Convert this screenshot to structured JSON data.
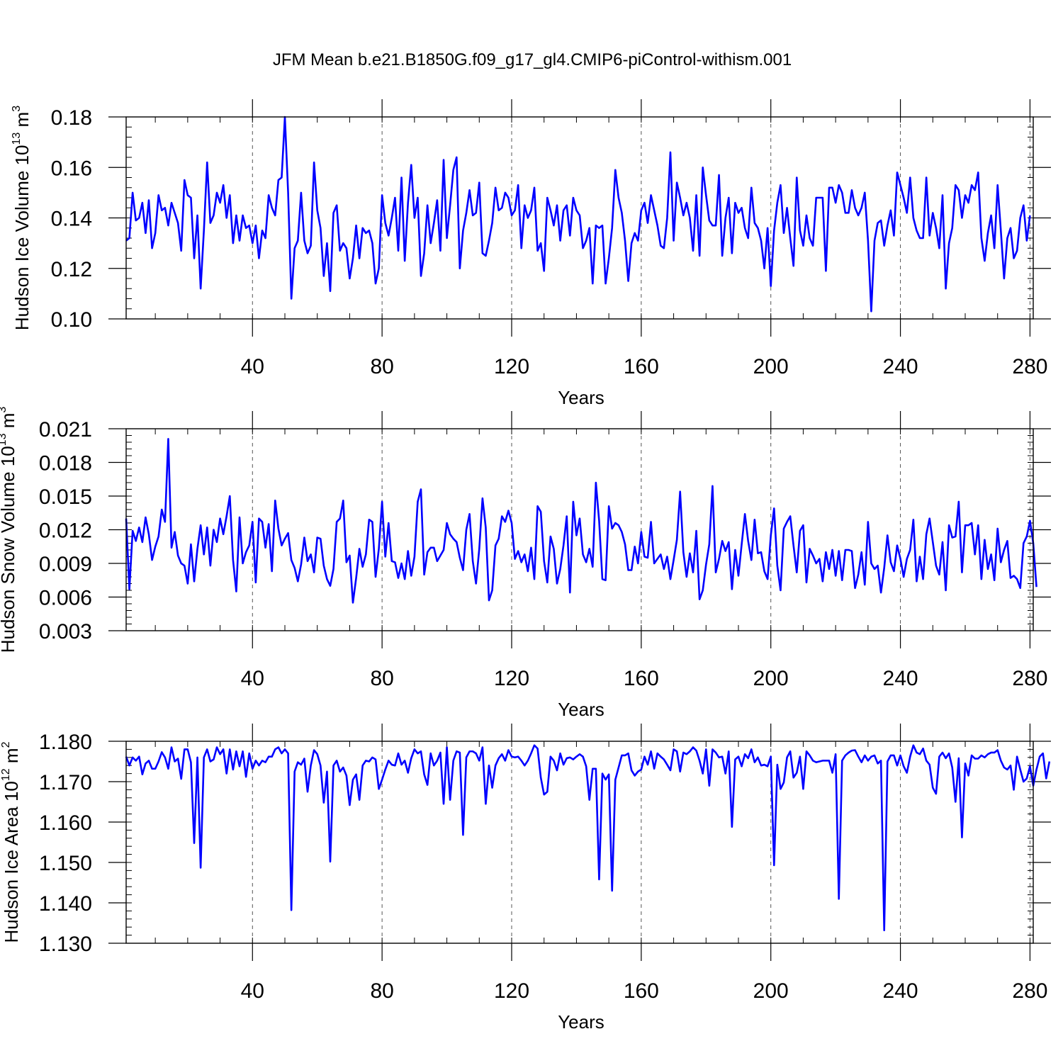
{
  "title": "JFM Mean b.e21.B1850G.f09_g17_gl4.CMIP6-piControl-withism.001",
  "colors": {
    "series": "#0000ff",
    "axis": "#000000",
    "grid": "#555555"
  },
  "chart_data": [
    {
      "type": "line",
      "ylabel": {
        "main": "Hudson Ice Volume 10",
        "exp": "13",
        "unit": " m",
        "unit_exp": "3"
      },
      "xlabel": "Years",
      "xlim": [
        1,
        281
      ],
      "ylim": [
        0.1,
        0.18
      ],
      "xticks": [
        40,
        80,
        120,
        160,
        200,
        240,
        280
      ],
      "xtick_labels": [
        "40",
        "80",
        "120",
        "160",
        "200",
        "240",
        "280"
      ],
      "yticks": [
        0.1,
        0.12,
        0.14,
        0.16,
        0.18
      ],
      "ytick_labels": [
        "0.10",
        "0.12",
        "0.14",
        "0.16",
        "0.18"
      ],
      "yminor_step": 0.004,
      "xminor_step": 10,
      "series": [
        {
          "name": "Hudson Ice Volume",
          "values": [
            0.131,
            0.132,
            0.15,
            0.139,
            0.14,
            0.146,
            0.134,
            0.147,
            0.128,
            0.134,
            0.149,
            0.143,
            0.144,
            0.137,
            0.146,
            0.142,
            0.138,
            0.127,
            0.155,
            0.149,
            0.148,
            0.124,
            0.141,
            0.112,
            0.135,
            0.162,
            0.138,
            0.141,
            0.15,
            0.146,
            0.153,
            0.14,
            0.149,
            0.13,
            0.141,
            0.131,
            0.141,
            0.136,
            0.137,
            0.13,
            0.137,
            0.124,
            0.135,
            0.132,
            0.149,
            0.144,
            0.141,
            0.155,
            0.156,
            0.18,
            0.15,
            0.108,
            0.128,
            0.131,
            0.15,
            0.131,
            0.126,
            0.129,
            0.162,
            0.143,
            0.136,
            0.117,
            0.13,
            0.111,
            0.142,
            0.145,
            0.127,
            0.13,
            0.128,
            0.116,
            0.124,
            0.137,
            0.124,
            0.136,
            0.134,
            0.135,
            0.13,
            0.114,
            0.12,
            0.149,
            0.138,
            0.133,
            0.14,
            0.148,
            0.127,
            0.156,
            0.123,
            0.146,
            0.161,
            0.14,
            0.148,
            0.117,
            0.126,
            0.145,
            0.13,
            0.138,
            0.147,
            0.127,
            0.163,
            0.132,
            0.145,
            0.159,
            0.164,
            0.12,
            0.135,
            0.142,
            0.151,
            0.141,
            0.142,
            0.154,
            0.126,
            0.125,
            0.131,
            0.138,
            0.152,
            0.143,
            0.144,
            0.15,
            0.148,
            0.141,
            0.143,
            0.153,
            0.128,
            0.145,
            0.14,
            0.143,
            0.152,
            0.127,
            0.13,
            0.119,
            0.148,
            0.143,
            0.137,
            0.145,
            0.131,
            0.143,
            0.145,
            0.133,
            0.148,
            0.143,
            0.141,
            0.128,
            0.131,
            0.136,
            0.114,
            0.137,
            0.136,
            0.137,
            0.114,
            0.124,
            0.136,
            0.159,
            0.148,
            0.142,
            0.131,
            0.115,
            0.13,
            0.134,
            0.131,
            0.143,
            0.146,
            0.138,
            0.149,
            0.143,
            0.137,
            0.129,
            0.128,
            0.14,
            0.166,
            0.131,
            0.154,
            0.148,
            0.141,
            0.146,
            0.14,
            0.127,
            0.149,
            0.125,
            0.16,
            0.149,
            0.139,
            0.137,
            0.137,
            0.157,
            0.125,
            0.14,
            0.148,
            0.126,
            0.146,
            0.142,
            0.144,
            0.136,
            0.132,
            0.152,
            0.138,
            0.136,
            0.131,
            0.12,
            0.136,
            0.113,
            0.135,
            0.146,
            0.153,
            0.134,
            0.144,
            0.132,
            0.121,
            0.156,
            0.135,
            0.129,
            0.141,
            0.132,
            0.129,
            0.148,
            0.148,
            0.148,
            0.119,
            0.152,
            0.152,
            0.146,
            0.153,
            0.15,
            0.142,
            0.142,
            0.151,
            0.144,
            0.141,
            0.144,
            0.15,
            0.131,
            0.103,
            0.131,
            0.138,
            0.139,
            0.129,
            0.137,
            0.143,
            0.133,
            0.158,
            0.153,
            0.148,
            0.142,
            0.156,
            0.14,
            0.135,
            0.132,
            0.132,
            0.156,
            0.133,
            0.142,
            0.136,
            0.128,
            0.149,
            0.112,
            0.13,
            0.136,
            0.153,
            0.151,
            0.14,
            0.149,
            0.146,
            0.153,
            0.151,
            0.158,
            0.132,
            0.123,
            0.134,
            0.141,
            0.128,
            0.153,
            0.135,
            0.116,
            0.132,
            0.136,
            0.124,
            0.127,
            0.14,
            0.145,
            0.131,
            0.141
          ]
        }
      ]
    },
    {
      "type": "line",
      "ylabel": {
        "main": "Hudson Snow Volume 10",
        "exp": "13",
        "unit": " m",
        "unit_exp": "3"
      },
      "xlabel": "Years",
      "xlim": [
        1,
        281
      ],
      "ylim": [
        0.003,
        0.021
      ],
      "xticks": [
        40,
        80,
        120,
        160,
        200,
        240,
        280
      ],
      "xtick_labels": [
        "40",
        "80",
        "120",
        "160",
        "200",
        "240",
        "280"
      ],
      "yticks": [
        0.003,
        0.006,
        0.009,
        0.012,
        0.015,
        0.018,
        0.021
      ],
      "ytick_labels": [
        "0.003",
        "0.006",
        "0.009",
        "0.012",
        "0.015",
        "0.018",
        "0.021"
      ],
      "yminor_step": 0.0006,
      "xminor_step": 10,
      "series": [
        {
          "name": "Hudson Snow Volume",
          "values": [
            0.013,
            0.0067,
            0.0119,
            0.011,
            0.0122,
            0.0109,
            0.0131,
            0.0116,
            0.0093,
            0.0105,
            0.0114,
            0.0138,
            0.0127,
            0.0201,
            0.0104,
            0.0118,
            0.0097,
            0.009,
            0.0088,
            0.0072,
            0.0107,
            0.0074,
            0.0103,
            0.0124,
            0.0098,
            0.0122,
            0.0088,
            0.012,
            0.0109,
            0.013,
            0.0116,
            0.0132,
            0.015,
            0.0093,
            0.0065,
            0.0131,
            0.009,
            0.01,
            0.0106,
            0.0127,
            0.0073,
            0.013,
            0.0127,
            0.0104,
            0.0125,
            0.0083,
            0.0146,
            0.0121,
            0.0106,
            0.0112,
            0.0117,
            0.0093,
            0.0086,
            0.0074,
            0.0089,
            0.0113,
            0.0092,
            0.0098,
            0.0082,
            0.0113,
            0.0112,
            0.0088,
            0.0076,
            0.007,
            0.0085,
            0.0127,
            0.013,
            0.0146,
            0.0091,
            0.0097,
            0.0055,
            0.0077,
            0.0103,
            0.0087,
            0.0098,
            0.0129,
            0.0127,
            0.0078,
            0.0103,
            0.0145,
            0.0096,
            0.0126,
            0.0092,
            0.0091,
            0.0077,
            0.009,
            0.0076,
            0.0101,
            0.0079,
            0.0096,
            0.0145,
            0.0156,
            0.008,
            0.01,
            0.0104,
            0.0104,
            0.0092,
            0.0097,
            0.0102,
            0.0126,
            0.0116,
            0.0112,
            0.0109,
            0.0095,
            0.0084,
            0.012,
            0.0134,
            0.0092,
            0.0072,
            0.0103,
            0.0148,
            0.0122,
            0.0057,
            0.0066,
            0.0106,
            0.0112,
            0.0132,
            0.0127,
            0.0137,
            0.0126,
            0.0094,
            0.0101,
            0.0091,
            0.0098,
            0.0083,
            0.0104,
            0.0076,
            0.0141,
            0.0136,
            0.0092,
            0.0073,
            0.0114,
            0.0103,
            0.0072,
            0.0085,
            0.0106,
            0.0132,
            0.0064,
            0.0145,
            0.0115,
            0.013,
            0.0098,
            0.0091,
            0.0103,
            0.0087,
            0.0162,
            0.0128,
            0.0076,
            0.0075,
            0.0141,
            0.0121,
            0.0126,
            0.0124,
            0.0118,
            0.0107,
            0.0084,
            0.0084,
            0.0105,
            0.009,
            0.0118,
            0.0096,
            0.0095,
            0.0127,
            0.009,
            0.0094,
            0.0098,
            0.0085,
            0.0096,
            0.0076,
            0.0093,
            0.0111,
            0.0154,
            0.01,
            0.0078,
            0.0099,
            0.0082,
            0.0119,
            0.0058,
            0.0066,
            0.0089,
            0.0107,
            0.0159,
            0.0082,
            0.0094,
            0.011,
            0.0101,
            0.0109,
            0.0067,
            0.0102,
            0.0079,
            0.0107,
            0.0134,
            0.011,
            0.0093,
            0.0129,
            0.0099,
            0.01,
            0.0083,
            0.0076,
            0.0115,
            0.0139,
            0.0088,
            0.0066,
            0.0121,
            0.0127,
            0.0132,
            0.0106,
            0.0082,
            0.0119,
            0.0124,
            0.0073,
            0.0103,
            0.0097,
            0.009,
            0.0094,
            0.0074,
            0.01,
            0.0085,
            0.0102,
            0.0079,
            0.0101,
            0.0075,
            0.0102,
            0.0102,
            0.0101,
            0.0068,
            0.008,
            0.01,
            0.0071,
            0.0127,
            0.009,
            0.0085,
            0.0088,
            0.0064,
            0.0086,
            0.0115,
            0.0091,
            0.0083,
            0.0106,
            0.0094,
            0.0078,
            0.0094,
            0.0102,
            0.0129,
            0.0074,
            0.0096,
            0.0076,
            0.0116,
            0.013,
            0.0109,
            0.0088,
            0.008,
            0.0109,
            0.0066,
            0.0124,
            0.0113,
            0.0114,
            0.0145,
            0.0082,
            0.0124,
            0.0124,
            0.0126,
            0.0098,
            0.0124,
            0.0076,
            0.0111,
            0.0085,
            0.0098,
            0.0075,
            0.0121,
            0.0091,
            0.0102,
            0.011,
            0.0077,
            0.0079,
            0.0076,
            0.0068,
            0.0108,
            0.0114,
            0.0128,
            0.0108,
            0.0069
          ]
        }
      ]
    },
    {
      "type": "line",
      "ylabel": {
        "main": "Hudson Ice Area 10",
        "exp": "12",
        "unit": " m",
        "unit_exp": "2"
      },
      "xlabel": "Years",
      "xlim": [
        1,
        281
      ],
      "ylim": [
        1.13,
        1.18
      ],
      "xticks": [
        40,
        80,
        120,
        160,
        200,
        240,
        280
      ],
      "xtick_labels": [
        "40",
        "80",
        "120",
        "160",
        "200",
        "240",
        "280"
      ],
      "yticks": [
        1.13,
        1.14,
        1.15,
        1.16,
        1.17,
        1.18
      ],
      "ytick_labels": [
        "1.130",
        "1.140",
        "1.150",
        "1.160",
        "1.170",
        "1.180"
      ],
      "yminor_step": 0.002,
      "xminor_step": 10,
      "series": [
        {
          "name": "Hudson Ice Area",
          "values": [
            1.1762,
            1.174,
            1.176,
            1.1752,
            1.1762,
            1.1718,
            1.1745,
            1.1752,
            1.1732,
            1.1732,
            1.175,
            1.1773,
            1.176,
            1.1732,
            1.1785,
            1.175,
            1.1757,
            1.1707,
            1.178,
            1.178,
            1.1748,
            1.1548,
            1.176,
            1.1487,
            1.176,
            1.178,
            1.175,
            1.1755,
            1.1785,
            1.1768,
            1.178,
            1.172,
            1.178,
            1.173,
            1.1775,
            1.1738,
            1.1775,
            1.1712,
            1.177,
            1.1732,
            1.1752,
            1.174,
            1.1752,
            1.1748,
            1.1762,
            1.1762,
            1.178,
            1.1785,
            1.177,
            1.178,
            1.177,
            1.1382,
            1.1725,
            1.1748,
            1.1742,
            1.1757,
            1.1675,
            1.174,
            1.1778,
            1.1768,
            1.174,
            1.1648,
            1.1725,
            1.1502,
            1.174,
            1.1752,
            1.1725,
            1.1735,
            1.1715,
            1.1642,
            1.1705,
            1.1718,
            1.1655,
            1.174,
            1.1752,
            1.175,
            1.176,
            1.1755,
            1.1682,
            1.1705,
            1.173,
            1.1752,
            1.1742,
            1.174,
            1.177,
            1.1742,
            1.1752,
            1.1722,
            1.1758,
            1.178,
            1.177,
            1.1775,
            1.1718,
            1.1692,
            1.177,
            1.174,
            1.1752,
            1.1772,
            1.1645,
            1.1785,
            1.1655,
            1.1752,
            1.1775,
            1.1772,
            1.1568,
            1.176,
            1.1775,
            1.1775,
            1.177,
            1.1752,
            1.1785,
            1.1645,
            1.174,
            1.1685,
            1.174,
            1.1758,
            1.1768,
            1.1752,
            1.1778,
            1.1762,
            1.176,
            1.1762,
            1.1752,
            1.174,
            1.1752,
            1.177,
            1.179,
            1.1782,
            1.171,
            1.1668,
            1.1675,
            1.1762,
            1.1752,
            1.1728,
            1.177,
            1.1742,
            1.1758,
            1.176,
            1.1755,
            1.1762,
            1.1768,
            1.1762,
            1.1738,
            1.1655,
            1.1732,
            1.1732,
            1.1458,
            1.172,
            1.1705,
            1.1718,
            1.143,
            1.1705,
            1.1735,
            1.1765,
            1.1765,
            1.177,
            1.1728,
            1.1715,
            1.1725,
            1.173,
            1.1762,
            1.1742,
            1.1775,
            1.1732,
            1.177,
            1.1762,
            1.1755,
            1.1742,
            1.1728,
            1.178,
            1.1775,
            1.1725,
            1.1772,
            1.1768,
            1.1775,
            1.1785,
            1.1777,
            1.1752,
            1.172,
            1.178,
            1.169,
            1.178,
            1.1772,
            1.176,
            1.1762,
            1.172,
            1.1775,
            1.1588,
            1.1755,
            1.1762,
            1.1738,
            1.1768,
            1.1758,
            1.178,
            1.1748,
            1.176,
            1.174,
            1.1742,
            1.1738,
            1.1762,
            1.1493,
            1.1742,
            1.1682,
            1.1698,
            1.176,
            1.1775,
            1.171,
            1.1722,
            1.1762,
            1.1682,
            1.1775,
            1.1765,
            1.1752,
            1.1748,
            1.175,
            1.1752,
            1.1752,
            1.1752,
            1.1722,
            1.1768,
            1.141,
            1.1752,
            1.1765,
            1.1772,
            1.1777,
            1.1778,
            1.1762,
            1.1748,
            1.1765,
            1.1752,
            1.1762,
            1.1765,
            1.1745,
            1.1752,
            1.1332,
            1.175,
            1.1765,
            1.1765,
            1.174,
            1.1765,
            1.1738,
            1.1722,
            1.1762,
            1.179,
            1.1772,
            1.1768,
            1.1782,
            1.1752,
            1.1742,
            1.1685,
            1.167,
            1.1762,
            1.1772,
            1.1758,
            1.177,
            1.1735,
            1.165,
            1.1758,
            1.1562,
            1.1745,
            1.1715,
            1.1765,
            1.1757,
            1.1757,
            1.1765,
            1.176,
            1.1768,
            1.1772,
            1.1772,
            1.1778,
            1.1752,
            1.1735,
            1.173,
            1.174,
            1.168,
            1.1762,
            1.173,
            1.17,
            1.1708,
            1.1738,
            1.169,
            1.173,
            1.1762,
            1.177,
            1.1708,
            1.175
          ]
        }
      ]
    }
  ]
}
